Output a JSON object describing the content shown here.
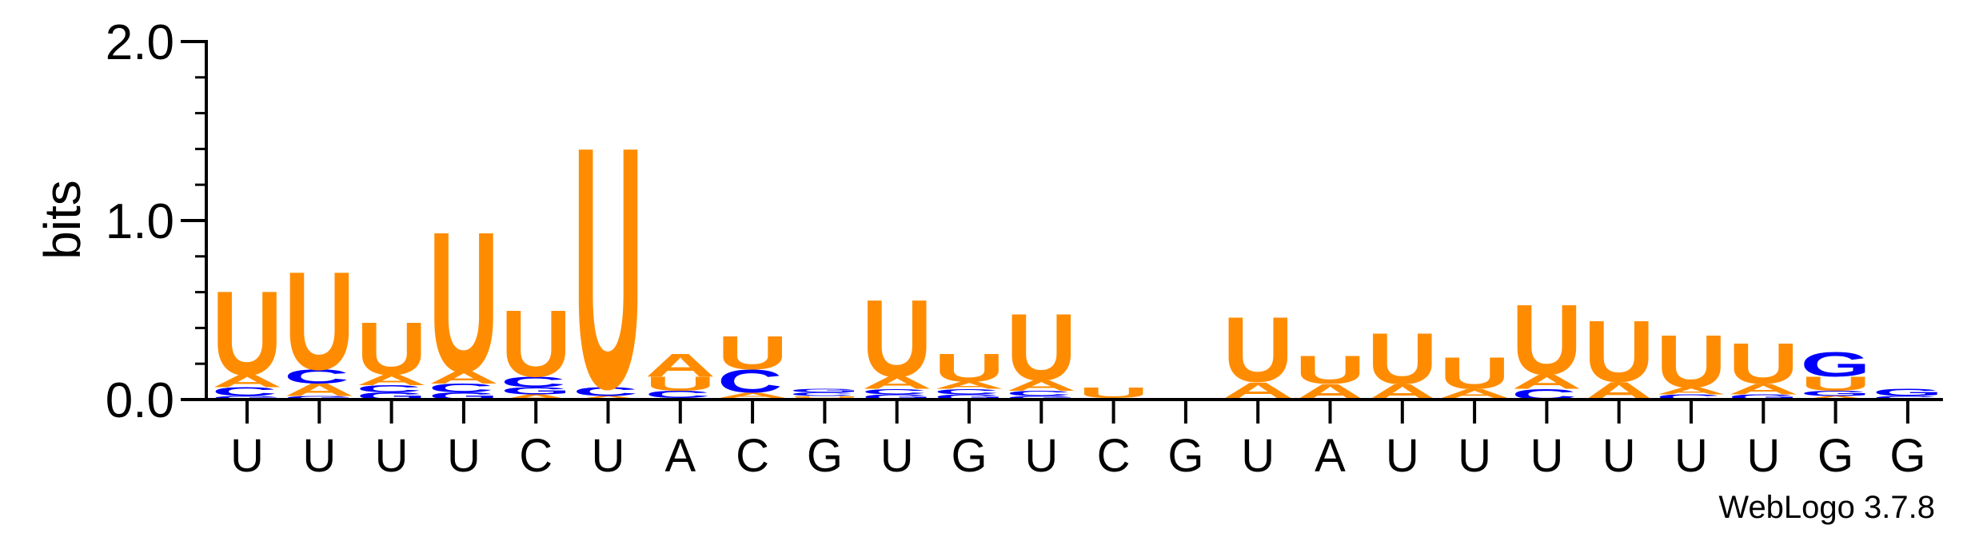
{
  "chart_data": {
    "type": "sequence-logo",
    "ylabel": "bits",
    "ylim": [
      0,
      2.0
    ],
    "y_ticks": [
      {
        "value": 0.0,
        "label": "0.0"
      },
      {
        "value": 1.0,
        "label": "1.0"
      },
      {
        "value": 2.0,
        "label": "2.0"
      }
    ],
    "x_tick_labels": [
      "U",
      "U",
      "U",
      "U",
      "C",
      "U",
      "A",
      "C",
      "G",
      "U",
      "G",
      "U",
      "C",
      "G",
      "U",
      "A",
      "U",
      "U",
      "U",
      "U",
      "U",
      "U",
      "G",
      "G"
    ],
    "watermark": "WebLogo 3.7.8",
    "colors": {
      "U": "#ff8c00",
      "A": "#ff8c00",
      "C": "#0000ff",
      "G": "#0000ff"
    },
    "positions": [
      {
        "stack": [
          [
            "G",
            0.02
          ],
          [
            "C",
            0.05
          ],
          [
            "A",
            0.07
          ],
          [
            "U",
            0.48
          ]
        ]
      },
      {
        "stack": [
          [
            "G",
            0.02
          ],
          [
            "A",
            0.07
          ],
          [
            "C",
            0.08
          ],
          [
            "U",
            0.56
          ]
        ]
      },
      {
        "stack": [
          [
            "G",
            0.04
          ],
          [
            "C",
            0.04
          ],
          [
            "A",
            0.06
          ],
          [
            "U",
            0.3
          ]
        ]
      },
      {
        "stack": [
          [
            "G",
            0.04
          ],
          [
            "C",
            0.05
          ],
          [
            "A",
            0.07
          ],
          [
            "U",
            0.8
          ]
        ]
      },
      {
        "stack": [
          [
            "A",
            0.03
          ],
          [
            "G",
            0.04
          ],
          [
            "C",
            0.06
          ],
          [
            "U",
            0.38
          ]
        ]
      },
      {
        "stack": [
          [
            "A",
            0.02
          ],
          [
            "C",
            0.05
          ],
          [
            "U",
            1.38
          ]
        ]
      },
      {
        "stack": [
          [
            "G",
            0.01
          ],
          [
            "C",
            0.04
          ],
          [
            "U",
            0.08
          ],
          [
            "A",
            0.13
          ]
        ]
      },
      {
        "stack": [
          [
            "G",
            0.01
          ],
          [
            "A",
            0.03
          ],
          [
            "C",
            0.13
          ],
          [
            "U",
            0.19
          ]
        ]
      },
      {
        "stack": [
          [
            "A",
            0.01
          ],
          [
            "U",
            0.01
          ],
          [
            "C",
            0.02
          ],
          [
            "G",
            0.02
          ]
        ]
      },
      {
        "stack": [
          [
            "G",
            0.03
          ],
          [
            "C",
            0.03
          ],
          [
            "A",
            0.07
          ],
          [
            "U",
            0.44
          ]
        ]
      },
      {
        "stack": [
          [
            "G",
            0.03
          ],
          [
            "C",
            0.03
          ],
          [
            "A",
            0.04
          ],
          [
            "U",
            0.16
          ]
        ]
      },
      {
        "stack": [
          [
            "G",
            0.02
          ],
          [
            "C",
            0.03
          ],
          [
            "A",
            0.06
          ],
          [
            "U",
            0.38
          ]
        ]
      },
      {
        "stack": [
          [
            "A",
            0.01
          ],
          [
            "U",
            0.06
          ]
        ]
      },
      {
        "stack": []
      },
      {
        "stack": [
          [
            "C",
            0.01
          ],
          [
            "A",
            0.09
          ],
          [
            "U",
            0.37
          ]
        ]
      },
      {
        "stack": [
          [
            "A",
            0.09
          ],
          [
            "U",
            0.16
          ]
        ]
      },
      {
        "stack": [
          [
            "A",
            0.09
          ],
          [
            "U",
            0.29
          ]
        ]
      },
      {
        "stack": [
          [
            "C",
            0.01
          ],
          [
            "A",
            0.05
          ],
          [
            "U",
            0.18
          ]
        ]
      },
      {
        "stack": [
          [
            "C",
            0.06
          ],
          [
            "A",
            0.08
          ],
          [
            "U",
            0.4
          ]
        ]
      },
      {
        "stack": [
          [
            "A",
            0.1
          ],
          [
            "U",
            0.35
          ]
        ]
      },
      {
        "stack": [
          [
            "C",
            0.03
          ],
          [
            "A",
            0.04
          ],
          [
            "U",
            0.3
          ]
        ]
      },
      {
        "stack": [
          [
            "G",
            0.03
          ],
          [
            "A",
            0.06
          ],
          [
            "U",
            0.23
          ]
        ]
      },
      {
        "stack": [
          [
            "A",
            0.02
          ],
          [
            "G",
            0.03
          ],
          [
            "U",
            0.08
          ],
          [
            "G",
            0.14
          ]
        ]
      },
      {
        "stack": [
          [
            "C",
            0.02
          ],
          [
            "G",
            0.04
          ]
        ]
      }
    ]
  }
}
